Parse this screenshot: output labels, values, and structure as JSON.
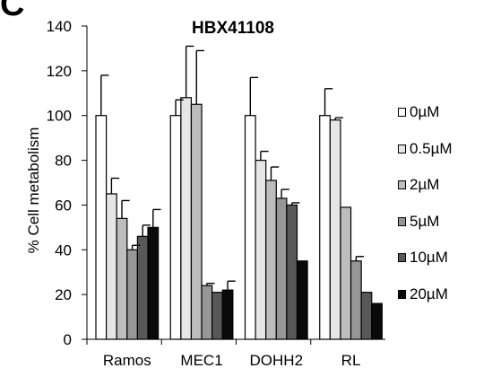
{
  "panel_label": "C",
  "chart_data": {
    "type": "bar",
    "title": "HBX41108",
    "xlabel": "",
    "ylabel": "% Cell metabolism",
    "ylim": [
      0,
      140
    ],
    "yticks": [
      0,
      20,
      40,
      60,
      80,
      100,
      120,
      140
    ],
    "categories": [
      "Ramos",
      "MEC1",
      "DOHH2",
      "RL"
    ],
    "legend_position": "right",
    "grid": false,
    "series": [
      {
        "name": "0µM",
        "color": "#ffffff",
        "values": [
          100,
          100,
          100,
          100
        ],
        "errors": [
          18,
          7,
          17,
          12
        ]
      },
      {
        "name": "0.5µM",
        "color": "#e6e6e6",
        "values": [
          65,
          108,
          80,
          98
        ],
        "errors": [
          7,
          23,
          4,
          1
        ]
      },
      {
        "name": "2µM",
        "color": "#bdbdbd",
        "values": [
          54,
          105,
          71,
          59
        ],
        "errors": [
          8,
          24,
          6,
          0
        ]
      },
      {
        "name": "5µM",
        "color": "#979797",
        "values": [
          40,
          24,
          63,
          35
        ],
        "errors": [
          2,
          1,
          4,
          2
        ]
      },
      {
        "name": "10µM",
        "color": "#585858",
        "values": [
          46,
          21,
          60,
          21
        ],
        "errors": [
          5,
          0,
          1,
          0
        ]
      },
      {
        "name": "20µM",
        "color": "#0a0a0a",
        "values": [
          50,
          22,
          35,
          16
        ],
        "errors": [
          8,
          4,
          0,
          0
        ]
      }
    ]
  }
}
